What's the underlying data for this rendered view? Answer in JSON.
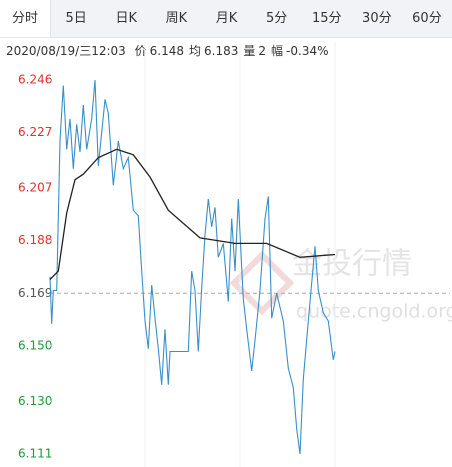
{
  "tabs": [
    "分时",
    "5日",
    "日K",
    "周K",
    "月K",
    "5分",
    "15分",
    "30分",
    "60分"
  ],
  "active_tab": 0,
  "info": {
    "time": "2020/08/19/三12:03",
    "items": [
      {
        "label": "价",
        "value": "6.148"
      },
      {
        "label": "均",
        "value": "6.183"
      },
      {
        "label": "量",
        "value": "2"
      },
      {
        "label": "幅",
        "value": "-0.34%"
      }
    ]
  },
  "watermark": {
    "title": "金投行情",
    "url": "quote.cngold.org"
  },
  "chart_data": {
    "type": "line",
    "series": [
      {
        "color": "#3a8fc8",
        "x": [
          0,
          1,
          2,
          4,
          6,
          8,
          10,
          12,
          14,
          16,
          18,
          20,
          22,
          25,
          27,
          29,
          31,
          33,
          35,
          38,
          41,
          44,
          47,
          50,
          53,
          55,
          57,
          59,
          61,
          63,
          65,
          67,
          69,
          71,
          72,
          83,
          85,
          87,
          89,
          91,
          93,
          95,
          97,
          99,
          101,
          104,
          107,
          109,
          111,
          113,
          116,
          118,
          121,
          123,
          126,
          129,
          131,
          133,
          136,
          140,
          143,
          146,
          148,
          150,
          152,
          155,
          159,
          161,
          164,
          167,
          170,
          171
        ],
        "values": [
          6.175,
          6.158,
          6.17,
          6.17,
          6.224,
          6.244,
          6.221,
          6.232,
          6.214,
          6.23,
          6.22,
          6.237,
          6.221,
          6.232,
          6.246,
          6.215,
          6.227,
          6.239,
          6.234,
          6.208,
          6.224,
          6.214,
          6.218,
          6.199,
          6.197,
          6.177,
          6.159,
          6.149,
          6.172,
          6.16,
          6.149,
          6.136,
          6.156,
          6.136,
          6.148,
          6.148,
          6.177,
          6.17,
          6.148,
          6.171,
          6.19,
          6.203,
          6.193,
          6.2,
          6.182,
          6.187,
          6.166,
          6.196,
          6.177,
          6.203,
          6.167,
          6.156,
          6.141,
          6.152,
          6.17,
          6.196,
          6.204,
          6.16,
          6.169,
          6.159,
          6.142,
          6.135,
          6.12,
          6.111,
          6.138,
          6.159,
          6.186,
          6.17,
          6.162,
          6.159,
          6.145,
          6.148
        ]
      },
      {
        "color": "#222222",
        "x": [
          0,
          5,
          10,
          15,
          20,
          29,
          40,
          50,
          60,
          71,
          90,
          111,
          130,
          150,
          171
        ],
        "values": [
          6.174,
          6.177,
          6.198,
          6.21,
          6.212,
          6.218,
          6.221,
          6.219,
          6.211,
          6.199,
          6.189,
          6.187,
          6.187,
          6.182,
          6.183
        ]
      }
    ],
    "xlim": [
      0,
      240
    ],
    "xticks": [
      57,
      114,
      171
    ],
    "ylim": [
      6.1063,
      6.2525
    ],
    "yticks": [
      6.246,
      6.227,
      6.207,
      6.188,
      6.169,
      {
        "value": 6.15,
        "label": "6.150"
      },
      {
        "value": 6.13,
        "label": "6.130"
      },
      6.111
    ],
    "baseline": 6.169,
    "up_color": "#e0312b",
    "down_color": "#1e9a3a",
    "flat_color": "#555555",
    "grid": true
  }
}
